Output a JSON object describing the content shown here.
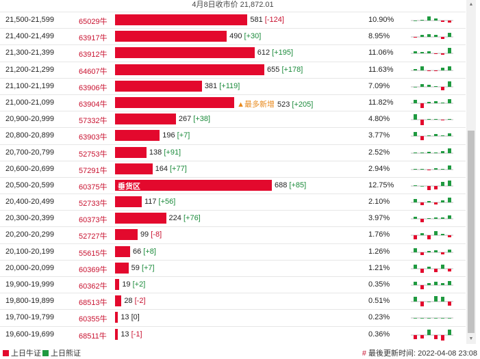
{
  "header": {
    "top_label": "4月8日收市价 21,872.01"
  },
  "colors": {
    "bull": "#e3092d",
    "bear": "#1f9a40",
    "hint": "#e8891c"
  },
  "rows": [
    {
      "range": "21,500-21,599",
      "code": "65029牛",
      "value": 581,
      "change": "[-124]",
      "tag": "",
      "hint": "",
      "pct": "10.90%",
      "spark": [
        0,
        1,
        6,
        3,
        -2,
        -3
      ]
    },
    {
      "range": "21,400-21,499",
      "code": "63917牛",
      "value": 490,
      "change": "[+30]",
      "tag": "",
      "hint": "",
      "pct": "8.95%",
      "spark": [
        -1,
        3,
        4,
        3,
        -3,
        6
      ]
    },
    {
      "range": "21,300-21,399",
      "code": "63912牛",
      "value": 612,
      "change": "[+195]",
      "tag": "",
      "hint": "",
      "pct": "11.06%",
      "spark": [
        3,
        2,
        3,
        -1,
        -2,
        8
      ]
    },
    {
      "range": "21,200-21,299",
      "code": "64607牛",
      "value": 655,
      "change": "[+178]",
      "tag": "",
      "hint": "",
      "pct": "11.63%",
      "spark": [
        2,
        6,
        -1,
        -1,
        4,
        6
      ]
    },
    {
      "range": "21,100-21,199",
      "code": "63906牛",
      "value": 381,
      "change": "[+119]",
      "tag": "",
      "hint": "",
      "pct": "7.09%",
      "spark": [
        0,
        4,
        3,
        1,
        -5,
        8
      ]
    },
    {
      "range": "21,000-21,099",
      "code": "63904牛",
      "value": 523,
      "change": "[+205]",
      "tag": "",
      "hint": "▲最多新增",
      "pct": "11.82%",
      "spark": [
        5,
        -7,
        2,
        3,
        1,
        6
      ]
    },
    {
      "range": "20,900-20,999",
      "code": "57332牛",
      "value": 267,
      "change": "[+38]",
      "tag": "",
      "hint": "",
      "pct": "4.80%",
      "spark": [
        8,
        -8,
        1,
        1,
        -1,
        1
      ]
    },
    {
      "range": "20,800-20,899",
      "code": "63903牛",
      "value": 196,
      "change": "[+7]",
      "tag": "",
      "hint": "",
      "pct": "3.77%",
      "spark": [
        6,
        -6,
        1,
        3,
        1,
        4
      ]
    },
    {
      "range": "20,700-20,799",
      "code": "52753牛",
      "value": 138,
      "change": "[+91]",
      "tag": "",
      "hint": "",
      "pct": "2.52%",
      "spark": [
        1,
        1,
        2,
        1,
        3,
        7
      ]
    },
    {
      "range": "20,600-20,699",
      "code": "57291牛",
      "value": 164,
      "change": "[+77]",
      "tag": "",
      "hint": "",
      "pct": "2.94%",
      "spark": [
        1,
        1,
        -1,
        2,
        1,
        6
      ]
    },
    {
      "range": "20,500-20,599",
      "code": "60375牛",
      "value": 688,
      "change": "[+85]",
      "tag": "垂货区",
      "hint": "",
      "pct": "12.75%",
      "spark": [
        1,
        0,
        -6,
        -5,
        6,
        8
      ]
    },
    {
      "range": "20,400-20,499",
      "code": "52733牛",
      "value": 117,
      "change": "[+56]",
      "tag": "",
      "hint": "",
      "pct": "2.10%",
      "spark": [
        5,
        -4,
        2,
        -3,
        3,
        7
      ]
    },
    {
      "range": "20,300-20,399",
      "code": "60373牛",
      "value": 224,
      "change": "[+76]",
      "tag": "",
      "hint": "",
      "pct": "3.97%",
      "spark": [
        3,
        -5,
        1,
        2,
        2,
        5
      ]
    },
    {
      "range": "20,200-20,299",
      "code": "52727牛",
      "value": 99,
      "change": "[-8]",
      "tag": "",
      "hint": "",
      "pct": "1.76%",
      "spark": [
        -6,
        3,
        -6,
        6,
        2,
        -3
      ]
    },
    {
      "range": "20,100-20,199",
      "code": "55615牛",
      "value": 66,
      "change": "[+8]",
      "tag": "",
      "hint": "",
      "pct": "1.26%",
      "spark": [
        6,
        -4,
        2,
        3,
        -3,
        4
      ]
    },
    {
      "range": "20,000-20,099",
      "code": "60369牛",
      "value": 59,
      "change": "[+7]",
      "tag": "",
      "hint": "",
      "pct": "1.21%",
      "spark": [
        6,
        -6,
        3,
        -5,
        6,
        -4
      ]
    },
    {
      "range": "19,900-19,999",
      "code": "60362牛",
      "value": 19,
      "change": "[+2]",
      "tag": "",
      "hint": "",
      "pct": "0.35%",
      "spark": [
        5,
        -6,
        3,
        5,
        3,
        6
      ]
    },
    {
      "range": "19,800-19,899",
      "code": "68513牛",
      "value": 28,
      "change": "[-2]",
      "tag": "",
      "hint": "",
      "pct": "0.51%",
      "spark": [
        7,
        -7,
        0,
        8,
        7,
        -6
      ]
    },
    {
      "range": "19,700-19,799",
      "code": "60355牛",
      "value": 13,
      "change": "[0]",
      "tag": "",
      "hint": "",
      "pct": "0.23%",
      "spark": [
        0,
        0,
        0,
        0,
        0,
        0
      ]
    },
    {
      "range": "19,600-19,699",
      "code": "68511牛",
      "value": 13,
      "change": "[-1]",
      "tag": "",
      "hint": "",
      "pct": "0.36%",
      "spark": [
        -6,
        -5,
        8,
        -6,
        -8,
        8
      ]
    }
  ],
  "footer": {
    "legend_bull": "上日牛证",
    "legend_bear": "上日熊证",
    "update_hash": "#",
    "update_text": "最後更新时间: 2022-04-08 23:08"
  }
}
